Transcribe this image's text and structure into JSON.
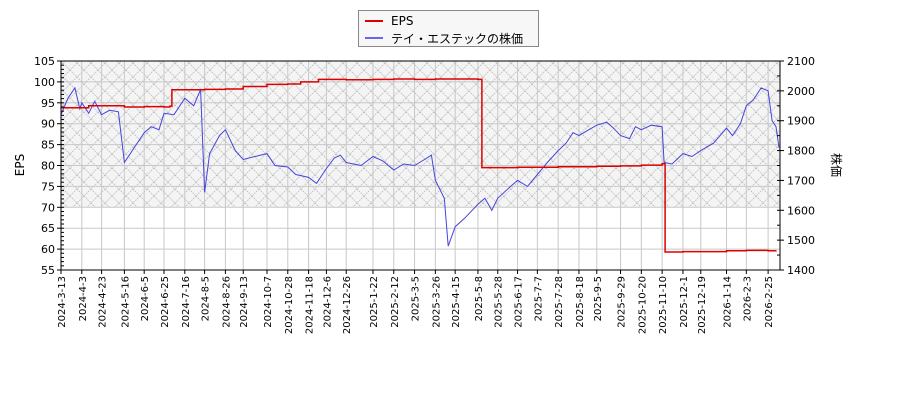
{
  "legend": {
    "items": [
      {
        "label": "EPS",
        "color": "#dd0000"
      },
      {
        "label": "テイ・エステックの株価",
        "color": "#4444dd"
      }
    ]
  },
  "axes": {
    "left_title": "EPS",
    "right_title": "株価"
  },
  "chart_data": {
    "type": "line",
    "title": "",
    "xlabel": "",
    "ylabel": "EPS",
    "y2label": "株価",
    "ylim": [
      55,
      105
    ],
    "y2lim": [
      1400,
      2100
    ],
    "yticks": [
      55,
      60,
      65,
      70,
      75,
      80,
      85,
      90,
      95,
      100,
      105
    ],
    "y2ticks": [
      1400,
      1500,
      1600,
      1700,
      1800,
      1900,
      2000,
      2100
    ],
    "xticks": [
      "2024-3-13",
      "2024-4-3",
      "2024-4-23",
      "2024-5-16",
      "2024-6-5",
      "2024-6-25",
      "2024-7-16",
      "2024-8-5",
      "2024-8-26",
      "2024-9-13",
      "2024-10-7",
      "2024-10-28",
      "2024-11-18",
      "2024-12-6",
      "2024-12-26",
      "2025-1-22",
      "2025-2-12",
      "2025-3-5",
      "2025-3-26",
      "2025-4-15",
      "2025-5-8",
      "2025-5-28",
      "2025-6-17",
      "2025-7-7",
      "2025-7-28",
      "2025-8-18",
      "2025-9-5",
      "2025-9-29",
      "2025-10-20",
      "2025-11-10",
      "2025-12-1",
      "2025-12-19",
      "2026-1-14",
      "2026-2-3",
      "2026-2-25"
    ],
    "grid": true,
    "hatched_region": {
      "ymin": 70,
      "ymax": 105
    },
    "legend_position": "top-center",
    "series": [
      {
        "name": "EPS",
        "axis": "left",
        "color": "#dd0000",
        "points": [
          [
            "2024-3-13",
            93.8
          ],
          [
            "2024-4-3",
            93.8
          ],
          [
            "2024-4-10",
            94.3
          ],
          [
            "2024-5-16",
            94.0
          ],
          [
            "2024-6-5",
            94.1
          ],
          [
            "2024-6-25",
            94.0
          ],
          [
            "2024-7-1",
            94.2
          ],
          [
            "2024-7-3",
            98.1
          ],
          [
            "2024-8-5",
            98.2
          ],
          [
            "2024-8-26",
            98.3
          ],
          [
            "2024-9-13",
            98.9
          ],
          [
            "2024-10-7",
            99.4
          ],
          [
            "2024-10-28",
            99.5
          ],
          [
            "2024-11-10",
            100.0
          ],
          [
            "2024-11-28",
            100.6
          ],
          [
            "2024-12-26",
            100.5
          ],
          [
            "2025-1-22",
            100.6
          ],
          [
            "2025-2-12",
            100.7
          ],
          [
            "2025-3-5",
            100.6
          ],
          [
            "2025-3-26",
            100.7
          ],
          [
            "2025-4-15",
            100.7
          ],
          [
            "2025-5-8",
            100.6
          ],
          [
            "2025-5-12",
            79.5
          ],
          [
            "2025-5-28",
            79.5
          ],
          [
            "2025-6-17",
            79.6
          ],
          [
            "2025-7-7",
            79.6
          ],
          [
            "2025-7-28",
            79.7
          ],
          [
            "2025-8-18",
            79.7
          ],
          [
            "2025-9-5",
            79.8
          ],
          [
            "2025-9-29",
            79.9
          ],
          [
            "2025-10-20",
            80.1
          ],
          [
            "2025-11-10",
            80.4
          ],
          [
            "2025-11-13",
            59.3
          ],
          [
            "2025-12-1",
            59.4
          ],
          [
            "2025-12-19",
            59.4
          ],
          [
            "2026-1-14",
            59.6
          ],
          [
            "2026-2-3",
            59.7
          ],
          [
            "2026-2-25",
            59.6
          ],
          [
            "2026-3-5",
            59.7
          ]
        ]
      },
      {
        "name": "テイ・エステックの株価",
        "axis": "right",
        "color": "#4444dd",
        "points": [
          [
            "2024-3-13",
            1920
          ],
          [
            "2024-3-20",
            1975
          ],
          [
            "2024-3-27",
            2010
          ],
          [
            "2024-4-1",
            1940
          ],
          [
            "2024-4-3",
            1960
          ],
          [
            "2024-4-10",
            1925
          ],
          [
            "2024-4-16",
            1965
          ],
          [
            "2024-4-23",
            1920
          ],
          [
            "2024-5-1",
            1935
          ],
          [
            "2024-5-10",
            1930
          ],
          [
            "2024-5-16",
            1760
          ],
          [
            "2024-5-24",
            1800
          ],
          [
            "2024-6-5",
            1860
          ],
          [
            "2024-6-12",
            1880
          ],
          [
            "2024-6-20",
            1870
          ],
          [
            "2024-6-25",
            1925
          ],
          [
            "2024-7-5",
            1920
          ],
          [
            "2024-7-16",
            1975
          ],
          [
            "2024-7-25",
            1950
          ],
          [
            "2024-8-1",
            2005
          ],
          [
            "2024-8-5",
            1660
          ],
          [
            "2024-8-10",
            1790
          ],
          [
            "2024-8-20",
            1850
          ],
          [
            "2024-8-26",
            1870
          ],
          [
            "2024-9-5",
            1800
          ],
          [
            "2024-9-13",
            1770
          ],
          [
            "2024-9-25",
            1780
          ],
          [
            "2024-10-7",
            1790
          ],
          [
            "2024-10-15",
            1750
          ],
          [
            "2024-10-28",
            1745
          ],
          [
            "2024-11-5",
            1720
          ],
          [
            "2024-11-18",
            1710
          ],
          [
            "2024-11-26",
            1690
          ],
          [
            "2024-12-6",
            1740
          ],
          [
            "2024-12-14",
            1775
          ],
          [
            "2024-12-20",
            1785
          ],
          [
            "2024-12-26",
            1760
          ],
          [
            "2025-1-10",
            1750
          ],
          [
            "2025-1-22",
            1780
          ],
          [
            "2025-2-1",
            1765
          ],
          [
            "2025-2-12",
            1735
          ],
          [
            "2025-2-22",
            1755
          ],
          [
            "2025-3-5",
            1750
          ],
          [
            "2025-3-15",
            1770
          ],
          [
            "2025-3-22",
            1785
          ],
          [
            "2025-3-26",
            1700
          ],
          [
            "2025-4-4",
            1640
          ],
          [
            "2025-4-8",
            1480
          ],
          [
            "2025-4-15",
            1545
          ],
          [
            "2025-4-25",
            1575
          ],
          [
            "2025-5-8",
            1620
          ],
          [
            "2025-5-15",
            1640
          ],
          [
            "2025-5-22",
            1600
          ],
          [
            "2025-5-28",
            1640
          ],
          [
            "2025-6-10",
            1680
          ],
          [
            "2025-6-17",
            1700
          ],
          [
            "2025-6-27",
            1680
          ],
          [
            "2025-7-7",
            1720
          ],
          [
            "2025-7-17",
            1760
          ],
          [
            "2025-7-28",
            1800
          ],
          [
            "2025-8-5",
            1825
          ],
          [
            "2025-8-12",
            1860
          ],
          [
            "2025-8-18",
            1850
          ],
          [
            "2025-8-28",
            1870
          ],
          [
            "2025-9-5",
            1885
          ],
          [
            "2025-9-15",
            1895
          ],
          [
            "2025-9-22",
            1875
          ],
          [
            "2025-9-29",
            1850
          ],
          [
            "2025-10-8",
            1840
          ],
          [
            "2025-10-14",
            1880
          ],
          [
            "2025-10-20",
            1870
          ],
          [
            "2025-10-30",
            1885
          ],
          [
            "2025-11-10",
            1880
          ],
          [
            "2025-11-12",
            1760
          ],
          [
            "2025-11-20",
            1755
          ],
          [
            "2025-12-1",
            1790
          ],
          [
            "2025-12-10",
            1780
          ],
          [
            "2025-12-19",
            1800
          ],
          [
            "2026-1-1",
            1825
          ],
          [
            "2026-1-10",
            1860
          ],
          [
            "2026-1-14",
            1875
          ],
          [
            "2026-1-20",
            1850
          ],
          [
            "2026-1-28",
            1890
          ],
          [
            "2026-2-3",
            1950
          ],
          [
            "2026-2-10",
            1970
          ],
          [
            "2026-2-18",
            2010
          ],
          [
            "2026-2-25",
            2000
          ],
          [
            "2026-3-1",
            1900
          ],
          [
            "2026-3-5",
            1880
          ],
          [
            "2026-3-8",
            1810
          ]
        ]
      }
    ]
  }
}
